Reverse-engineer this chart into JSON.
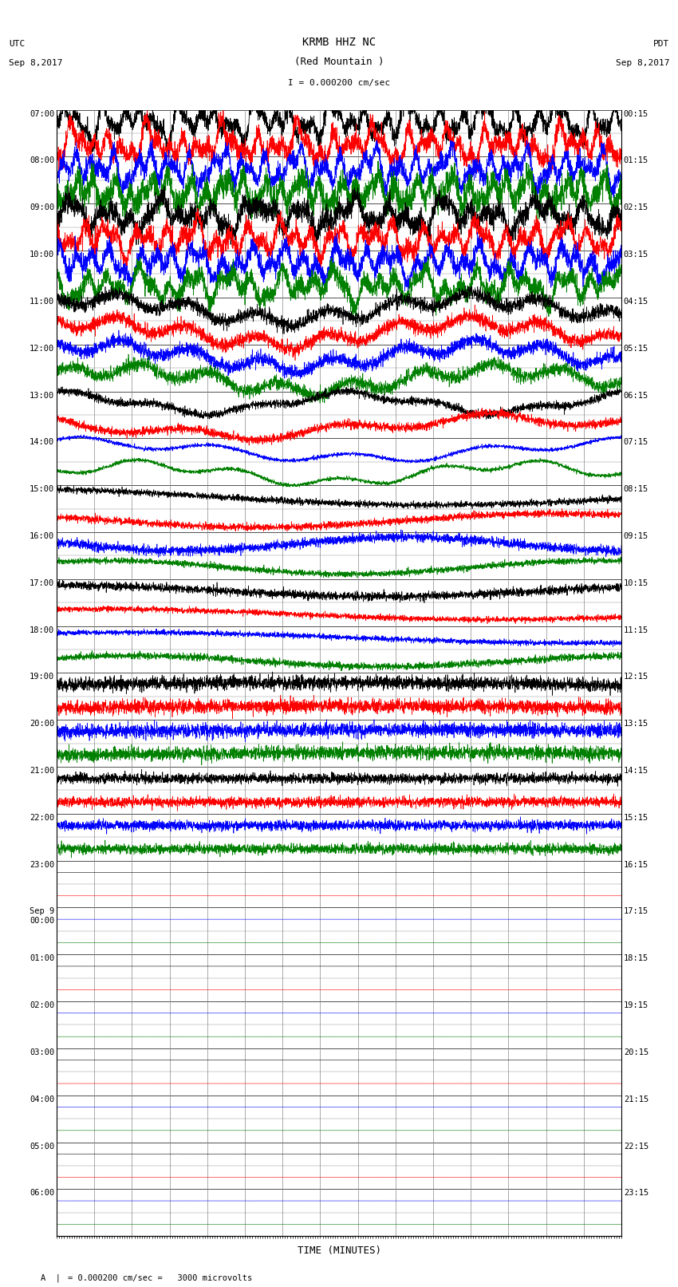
{
  "title_line1": "KRMB HHZ NC",
  "title_line2": "(Red Mountain )",
  "title_scale": "I = 0.000200 cm/sec",
  "left_header_line1": "UTC",
  "left_header_line2": "Sep 8,2017",
  "right_header_line1": "PDT",
  "right_header_line2": "Sep 8,2017",
  "xlabel": "TIME (MINUTES)",
  "footnote": "= 0.000200 cm/sec =   3000 microvolts",
  "utc_labels_all": [
    "07:00",
    "",
    "08:00",
    "",
    "09:00",
    "",
    "10:00",
    "",
    "11:00",
    "",
    "12:00",
    "",
    "13:00",
    "",
    "14:00",
    "",
    "15:00",
    "",
    "16:00",
    "",
    "17:00",
    "",
    "18:00",
    "",
    "19:00",
    "",
    "20:00",
    "",
    "21:00",
    "",
    "22:00",
    "",
    "23:00",
    "",
    "Sep 9\n00:00",
    "",
    "01:00",
    "",
    "02:00",
    "",
    "03:00",
    "",
    "04:00",
    "",
    "05:00",
    "",
    "06:00",
    ""
  ],
  "pdt_labels_all": [
    "00:15",
    "",
    "01:15",
    "",
    "02:15",
    "",
    "03:15",
    "",
    "04:15",
    "",
    "05:15",
    "",
    "06:15",
    "",
    "07:15",
    "",
    "08:15",
    "",
    "09:15",
    "",
    "10:15",
    "",
    "11:15",
    "",
    "12:15",
    "",
    "13:15",
    "",
    "14:15",
    "",
    "15:15",
    "",
    "16:15",
    "",
    "17:15",
    "",
    "18:15",
    "",
    "19:15",
    "",
    "20:15",
    "",
    "21:15",
    "",
    "22:15",
    "",
    "23:15",
    ""
  ],
  "n_rows": 48,
  "n_active_rows": 32,
  "row_colors_pattern": [
    "black",
    "red",
    "blue",
    "green"
  ],
  "background_color": "white",
  "plot_bg": "white",
  "grid_color": "#888888",
  "thick_line_color": "#333333",
  "figsize": [
    8.5,
    16.13
  ]
}
